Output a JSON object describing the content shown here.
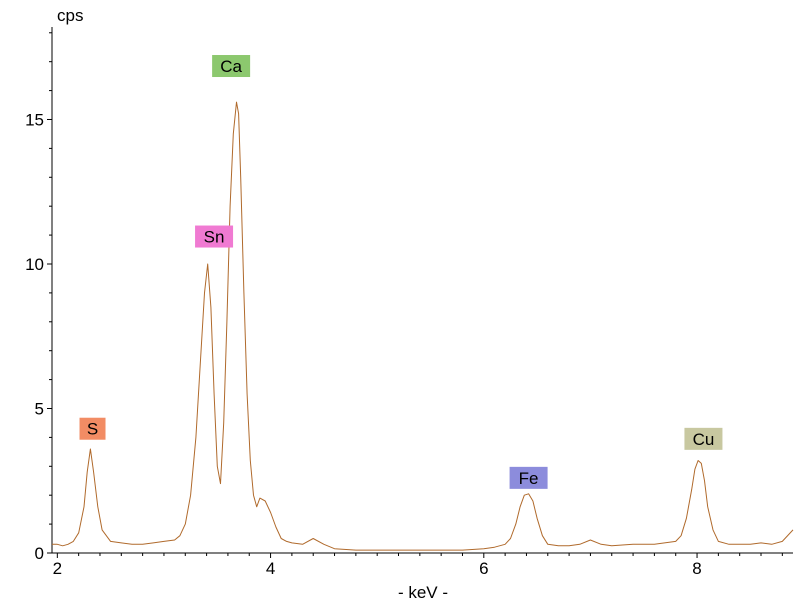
{
  "chart_data": {
    "type": "line",
    "title": "",
    "xlabel": "- keV -",
    "ylabel": "cps",
    "xlim": [
      1.95,
      8.9
    ],
    "ylim": [
      0,
      18.2
    ],
    "grid": false,
    "x_ticks": [
      2,
      4,
      6,
      8
    ],
    "y_ticks": [
      0,
      5,
      10,
      15
    ],
    "line_color": "#b06a2c",
    "series": [
      {
        "x": [
          1.95,
          2.0,
          2.05,
          2.1,
          2.15,
          2.2,
          2.25,
          2.28,
          2.31,
          2.34,
          2.38,
          2.42,
          2.5,
          2.6,
          2.7,
          2.8,
          2.9,
          3.0,
          3.1,
          3.15,
          3.2,
          3.25,
          3.3,
          3.34,
          3.38,
          3.41,
          3.44,
          3.47,
          3.5,
          3.53,
          3.56,
          3.59,
          3.62,
          3.65,
          3.68,
          3.7,
          3.72,
          3.75,
          3.78,
          3.81,
          3.84,
          3.87,
          3.9,
          3.95,
          4.0,
          4.05,
          4.1,
          4.15,
          4.2,
          4.3,
          4.4,
          4.5,
          4.6,
          4.8,
          5.0,
          5.2,
          5.4,
          5.6,
          5.8,
          6.0,
          6.1,
          6.2,
          6.25,
          6.3,
          6.34,
          6.38,
          6.42,
          6.46,
          6.5,
          6.55,
          6.6,
          6.7,
          6.8,
          6.9,
          7.0,
          7.1,
          7.2,
          7.4,
          7.6,
          7.8,
          7.85,
          7.9,
          7.95,
          7.98,
          8.01,
          8.04,
          8.07,
          8.1,
          8.15,
          8.2,
          8.3,
          8.4,
          8.5,
          8.6,
          8.7,
          8.8,
          8.9
        ],
        "y": [
          0.3,
          0.3,
          0.25,
          0.3,
          0.4,
          0.7,
          1.6,
          2.8,
          3.6,
          2.8,
          1.6,
          0.8,
          0.4,
          0.35,
          0.3,
          0.3,
          0.35,
          0.4,
          0.45,
          0.6,
          1.0,
          2.0,
          4.0,
          6.5,
          9.0,
          10.0,
          8.5,
          5.5,
          3.0,
          2.4,
          4.5,
          8.0,
          12.0,
          14.5,
          15.6,
          15.2,
          13.0,
          9.0,
          5.5,
          3.2,
          2.0,
          1.6,
          1.9,
          1.8,
          1.4,
          0.9,
          0.5,
          0.4,
          0.35,
          0.3,
          0.5,
          0.3,
          0.15,
          0.1,
          0.1,
          0.1,
          0.1,
          0.1,
          0.1,
          0.15,
          0.2,
          0.3,
          0.5,
          1.0,
          1.6,
          2.0,
          2.05,
          1.8,
          1.2,
          0.6,
          0.3,
          0.25,
          0.25,
          0.3,
          0.45,
          0.3,
          0.25,
          0.3,
          0.3,
          0.4,
          0.6,
          1.2,
          2.2,
          2.9,
          3.2,
          3.1,
          2.5,
          1.6,
          0.8,
          0.4,
          0.3,
          0.3,
          0.3,
          0.35,
          0.3,
          0.4,
          0.8
        ]
      }
    ],
    "peak_labels": [
      {
        "text": "S",
        "x": 2.33,
        "y": 4.3,
        "color": "#f28c64"
      },
      {
        "text": "Sn",
        "x": 3.47,
        "y": 10.95,
        "color": "#f07ad2"
      },
      {
        "text": "Ca",
        "x": 3.63,
        "y": 16.85,
        "color": "#8cc86e"
      },
      {
        "text": "Fe",
        "x": 6.42,
        "y": 2.6,
        "color": "#8c8cdc"
      },
      {
        "text": "Cu",
        "x": 8.06,
        "y": 3.95,
        "color": "#c8c8a0"
      }
    ]
  }
}
